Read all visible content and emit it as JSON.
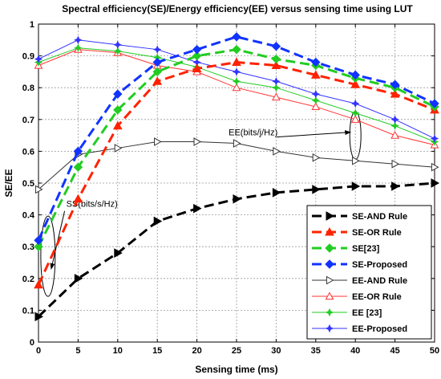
{
  "chart_data": {
    "type": "line",
    "title": "Spectral efficiency(SE)/Energy efficiency(EE) versus sensing time using LUT",
    "xlabel": "Sensing time (ms)",
    "ylabel": "SE/EE",
    "xlim": [
      0,
      50
    ],
    "ylim": [
      0,
      1
    ],
    "xticks": [
      "0",
      "5",
      "10",
      "15",
      "20",
      "25",
      "30",
      "35",
      "40",
      "45",
      "50"
    ],
    "yticks": [
      "0",
      "0.1",
      "0.2",
      "0.3",
      "0.4",
      "0.5",
      "0.6",
      "0.7",
      "0.8",
      "0.9",
      "1"
    ],
    "grid": true,
    "legend_position": "bottom-right",
    "x": [
      0,
      5,
      10,
      15,
      20,
      25,
      30,
      35,
      40,
      45,
      50
    ],
    "series": [
      {
        "name": "SE-AND Rule",
        "values": [
          0.08,
          0.2,
          0.28,
          0.38,
          0.42,
          0.45,
          0.47,
          0.48,
          0.49,
          0.49,
          0.5
        ],
        "color": "#000000",
        "dash": "long",
        "marker": "triangle-right-filled",
        "width": 3
      },
      {
        "name": "SE-OR Rule",
        "values": [
          0.18,
          0.45,
          0.68,
          0.82,
          0.86,
          0.88,
          0.87,
          0.84,
          0.81,
          0.78,
          0.73
        ],
        "color": "#ff2200",
        "dash": "long",
        "marker": "triangle-up-filled",
        "width": 3
      },
      {
        "name": "SE[23]",
        "values": [
          0.3,
          0.55,
          0.73,
          0.85,
          0.9,
          0.92,
          0.89,
          0.87,
          0.83,
          0.8,
          0.74
        ],
        "color": "#22cc22",
        "dash": "long",
        "marker": "diamond-filled",
        "width": 3
      },
      {
        "name": "SE-Proposed",
        "values": [
          0.32,
          0.6,
          0.78,
          0.88,
          0.92,
          0.96,
          0.93,
          0.88,
          0.84,
          0.81,
          0.75
        ],
        "color": "#1133ff",
        "dash": "long",
        "marker": "diamond-filled",
        "width": 3
      },
      {
        "name": "EE-AND Rule",
        "values": [
          0.48,
          0.59,
          0.61,
          0.63,
          0.63,
          0.625,
          0.6,
          0.58,
          0.57,
          0.56,
          0.55
        ],
        "color": "#333333",
        "dash": "none",
        "marker": "triangle-right-open",
        "width": 1
      },
      {
        "name": "EE-OR Rule",
        "values": [
          0.87,
          0.92,
          0.91,
          0.87,
          0.85,
          0.8,
          0.77,
          0.74,
          0.7,
          0.65,
          0.62
        ],
        "color": "#ff3333",
        "dash": "none",
        "marker": "triangle-up-open",
        "width": 1
      },
      {
        "name": "EE [23]",
        "values": [
          0.88,
          0.925,
          0.915,
          0.895,
          0.865,
          0.82,
          0.8,
          0.76,
          0.72,
          0.68,
          0.63
        ],
        "color": "#22cc22",
        "dash": "none",
        "marker": "star",
        "width": 1
      },
      {
        "name": "EE-Proposed",
        "values": [
          0.89,
          0.95,
          0.935,
          0.92,
          0.88,
          0.85,
          0.82,
          0.78,
          0.75,
          0.7,
          0.64
        ],
        "color": "#3333ff",
        "dash": "none",
        "marker": "star",
        "width": 1
      }
    ],
    "annotations": [
      {
        "text": "EE(bits/j/Hz)",
        "x": 24,
        "y": 0.65,
        "target": [
          40,
          0.66
        ]
      },
      {
        "text": "SS(bits/s/Hz)",
        "x": 3.5,
        "y": 0.425,
        "target": [
          1.2,
          0.23
        ]
      }
    ]
  }
}
